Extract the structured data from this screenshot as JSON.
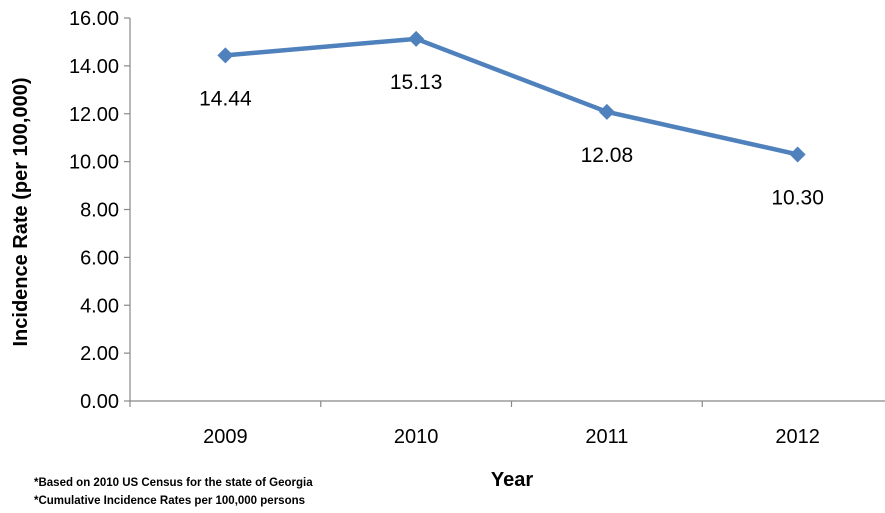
{
  "chart_data": {
    "type": "line",
    "title": "",
    "xlabel": "Year",
    "ylabel": "Incidence Rate (per 100,000)",
    "categories": [
      "2009",
      "2010",
      "2011",
      "2012"
    ],
    "series": [
      {
        "values": [
          14.44,
          15.13,
          12.08,
          10.3
        ]
      }
    ],
    "data_labels": [
      "14.44",
      "15.13",
      "12.08",
      "10.30"
    ],
    "ylim": [
      0,
      16
    ],
    "yticks": [
      "0.00",
      "2.00",
      "4.00",
      "6.00",
      "8.00",
      "10.00",
      "12.00",
      "14.00",
      "16.00"
    ],
    "grid": false,
    "legend": "none",
    "colors": {
      "line": "#4f81bd",
      "axis": "#888888"
    }
  },
  "footnotes": [
    "*Based on 2010 US Census for the state of Georgia",
    "*Cumulative Incidence Rates per 100,000 persons"
  ]
}
